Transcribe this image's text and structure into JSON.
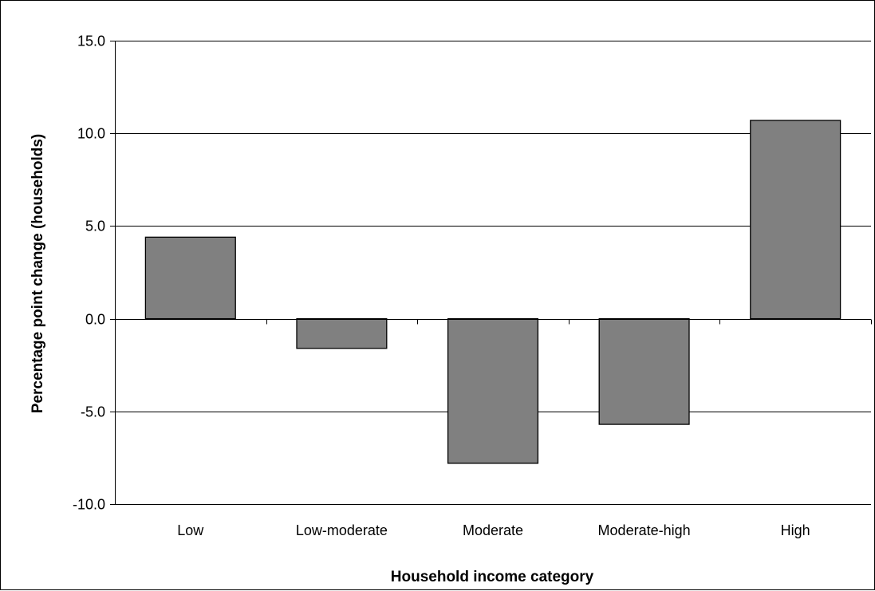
{
  "chart_data": {
    "type": "bar",
    "categories": [
      "Low",
      "Low-moderate",
      "Moderate",
      "Moderate-high",
      "High"
    ],
    "values": [
      4.4,
      -1.6,
      -7.8,
      -5.7,
      10.7
    ],
    "title": "",
    "xlabel": "Household income category",
    "ylabel": "Percentage point change (households)",
    "ylim": [
      -10.0,
      15.0
    ],
    "yticks": [
      15.0,
      10.0,
      5.0,
      0.0,
      -5.0,
      -10.0
    ],
    "ytick_labels": [
      "15.0",
      "10.0",
      "5.0",
      "0.0",
      "-5.0",
      "-10.0"
    ],
    "grid": true,
    "legend": "none",
    "bar_color": "#808080",
    "bar_outline_color": "#000000",
    "gridline_color": "#000000"
  }
}
